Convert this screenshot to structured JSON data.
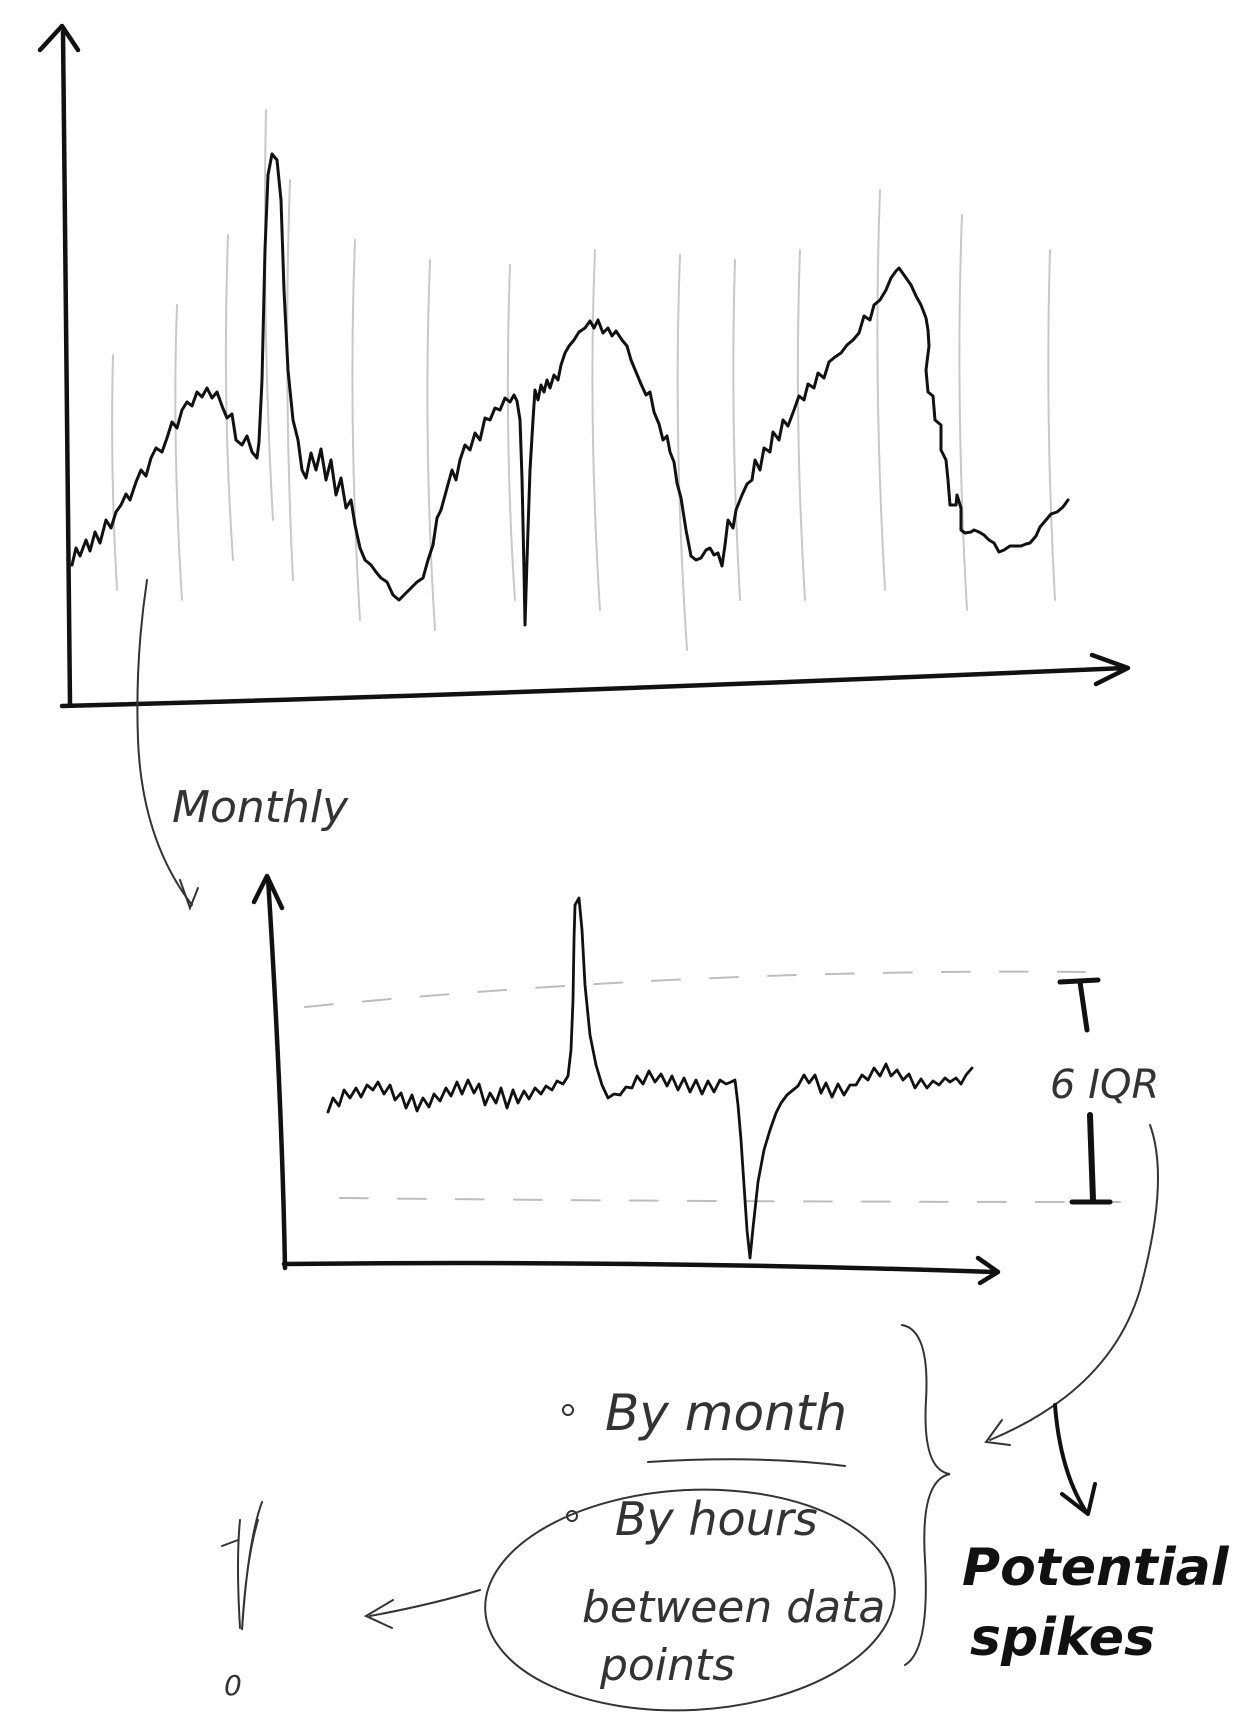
{
  "labels": {
    "monthly": "Monthly",
    "iqr": "6 IQR",
    "bullet_month": "By month",
    "bullet_hours_line1": "By hours",
    "bullet_hours_line2": "between data",
    "bullet_hours_line3": "points",
    "result_line1": "Potential",
    "result_line2": "spikes",
    "exclaim_top": "!",
    "exclaim_dot": "0"
  },
  "colors": {
    "ink": "#111111",
    "pencil": "#333333",
    "faint": "#c8c8c8",
    "dash": "#bdbdbd"
  }
}
